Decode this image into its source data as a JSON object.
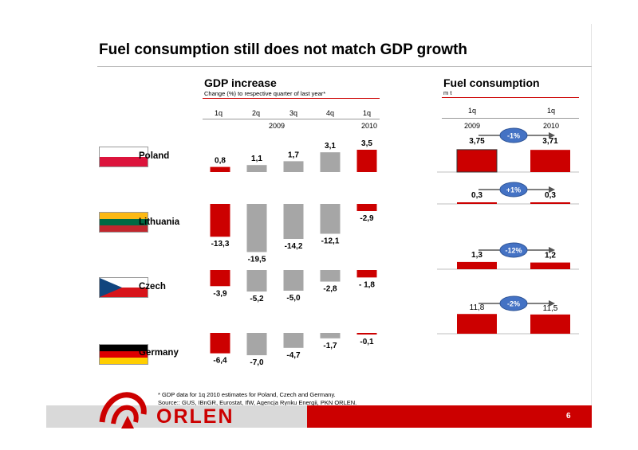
{
  "slide": {
    "title": "Fuel consumption still does not match GDP growth",
    "page_number": "6",
    "footnote_line1": "* GDP data  for 1q 2010  estimates for Poland, Czech and Germany.",
    "footnote_line2": "Source:: GUS, IBnGR, Eurostat, IfW, Agencja Rynku Energii, PKN ORLEN.",
    "logo_text": "ORLEN"
  },
  "gdp": {
    "title": "GDP increase",
    "subtitle": "Change (%) to respective quarter of last year*",
    "quarters": [
      "1q",
      "2q",
      "3q",
      "4q",
      "1q"
    ],
    "year_2009": "2009",
    "year_2010": "2010"
  },
  "fuel": {
    "title": "Fuel consumption",
    "subtitle": "m t",
    "q_left": "1q",
    "q_right": "1q",
    "year_left": "2009",
    "year_right": "2010"
  },
  "colors": {
    "red": "#cc0000",
    "gray": "#a6a6a6",
    "badge": "#4472c4"
  },
  "countries": [
    {
      "name": "Poland",
      "flag": [
        "#ffffff",
        "#dc143c"
      ]
    },
    {
      "name": "Lithuania",
      "flag": [
        "#fdb913",
        "#006a44",
        "#c1272d"
      ]
    },
    {
      "name": "Czech",
      "flag": "czech"
    },
    {
      "name": "Germany",
      "flag": [
        "#000000",
        "#dd0000",
        "#ffce00"
      ]
    }
  ],
  "chart_data": [
    {
      "type": "bar",
      "title": "GDP increase",
      "subtitle": "Change (%) to respective quarter of last year*",
      "categories": [
        "1q 2009",
        "2q 2009",
        "3q 2009",
        "4q 2009",
        "1q 2010"
      ],
      "series": [
        {
          "name": "Poland",
          "values": [
            0.8,
            1.1,
            1.7,
            3.1,
            3.5
          ],
          "labels": [
            "0,8",
            "1,1",
            "1,7",
            "3,1",
            "3,5"
          ]
        },
        {
          "name": "Lithuania",
          "values": [
            -13.3,
            -19.5,
            -14.2,
            -12.1,
            -2.9
          ],
          "labels": [
            "-13,3",
            "-19,5",
            "-14,2",
            "-12,1",
            "-2,9"
          ]
        },
        {
          "name": "Czech",
          "values": [
            -3.9,
            -5.2,
            -5.0,
            -2.8,
            -1.8
          ],
          "labels": [
            "-3,9",
            "-5,2",
            "-5,0",
            "-2,8",
            "- 1,8"
          ]
        },
        {
          "name": "Germany",
          "values": [
            -6.4,
            -7.0,
            -4.7,
            -1.7,
            -0.1
          ],
          "labels": [
            "-6,4",
            "-7,0",
            "-4,7",
            "-1,7",
            "-0,1"
          ]
        }
      ]
    },
    {
      "type": "bar",
      "title": "Fuel consumption",
      "subtitle": "m t",
      "categories": [
        "1q 2009",
        "1q 2010"
      ],
      "series": [
        {
          "name": "Poland",
          "values": [
            3.75,
            3.71
          ],
          "labels": [
            "3,75",
            "3,71"
          ],
          "change": "-1%"
        },
        {
          "name": "Lithuania",
          "values": [
            0.3,
            0.3
          ],
          "labels": [
            "0,3",
            "0,3"
          ],
          "change": "+1%"
        },
        {
          "name": "Czech",
          "values": [
            1.3,
            1.2
          ],
          "labels": [
            "1,3",
            "1,2"
          ],
          "change": "-12%"
        },
        {
          "name": "Germany",
          "values": [
            11.8,
            11.5
          ],
          "labels": [
            "11,8",
            "11,5"
          ],
          "change": "-2%"
        }
      ]
    }
  ]
}
